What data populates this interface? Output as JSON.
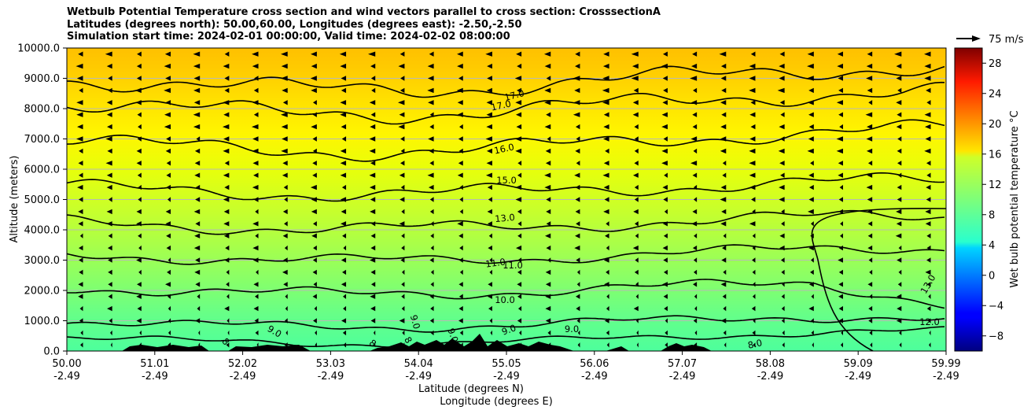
{
  "chart_data": {
    "type": "contourf",
    "title_lines": [
      "Wetbulb Potential Temperature cross section and wind vectors parallel to cross section: CrosssectionA",
      "Latitudes (degrees north): 50.00,60.00, Longitudes (degrees east): -2.50,-2.50",
      "Simulation start time: 2024-02-01 00:00:00, Valid time: 2024-02-02 08:00:00"
    ],
    "ylabel": "Altitude (meters)",
    "xlabel_lines": [
      "Latitude (degrees N)",
      "Longitude (degrees E)"
    ],
    "ylim": [
      0,
      10000
    ],
    "y_ticks": [
      "0.0",
      "1000.0",
      "2000.0",
      "3000.0",
      "4000.0",
      "5000.0",
      "6000.0",
      "7000.0",
      "8000.0",
      "9000.0",
      "10000.0"
    ],
    "x_ticks": [
      {
        "lat": "50.00",
        "lon": "-2.49"
      },
      {
        "lat": "51.01",
        "lon": "-2.49"
      },
      {
        "lat": "52.02",
        "lon": "-2.49"
      },
      {
        "lat": "53.03",
        "lon": "-2.49"
      },
      {
        "lat": "54.04",
        "lon": "-2.49"
      },
      {
        "lat": "55.05",
        "lon": "-2.49"
      },
      {
        "lat": "56.06",
        "lon": "-2.49"
      },
      {
        "lat": "57.07",
        "lon": "-2.49"
      },
      {
        "lat": "58.08",
        "lon": "-2.49"
      },
      {
        "lat": "59.09",
        "lon": "-2.49"
      },
      {
        "lat": "59.99",
        "lon": "-2.49"
      }
    ],
    "contour_labels": [
      "17.0",
      "17.0",
      "16.0",
      "15.0",
      "13.0",
      "11.0",
      "11.0",
      "10.0",
      "9.0",
      "9.0",
      "9.0",
      "9.0",
      "8.0",
      "8",
      "8",
      "8",
      "9.0",
      "13.0",
      "12.0"
    ],
    "contour_levels": [
      8,
      9,
      10,
      11,
      12,
      13,
      14,
      15,
      16,
      17
    ],
    "colorbar": {
      "label": "Wet bulb potential temperature °C",
      "range": [
        -10,
        30
      ],
      "ticks": [
        "28",
        "24",
        "20",
        "16",
        "12",
        "8",
        "4",
        "0",
        "−4",
        "−8"
      ]
    },
    "quiver_key": {
      "label": "75 m/s",
      "value": 75
    },
    "wind_direction": "southward (toward lower latitude)",
    "colormap": "jet"
  }
}
